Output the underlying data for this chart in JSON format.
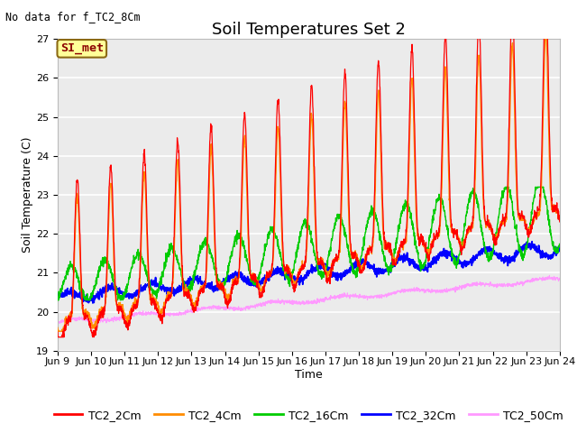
{
  "title": "Soil Temperatures Set 2",
  "subtitle": "No data for f_TC2_8Cm",
  "xlabel": "Time",
  "ylabel": "Soil Temperature (C)",
  "ylim": [
    19.0,
    27.0
  ],
  "yticks": [
    19.0,
    20.0,
    21.0,
    22.0,
    23.0,
    24.0,
    25.0,
    26.0,
    27.0
  ],
  "xtick_labels": [
    "Jun 9",
    "Jun 10",
    "Jun 11",
    "Jun 12",
    "Jun 13",
    "Jun 14",
    "Jun 15",
    "Jun 16",
    "Jun 17",
    "Jun 18",
    "Jun 19",
    "Jun 20",
    "Jun 21",
    "Jun 22",
    "Jun 23",
    "Jun 24"
  ],
  "series_colors": {
    "TC2_2Cm": "#FF0000",
    "TC2_4Cm": "#FF8C00",
    "TC2_16Cm": "#00CC00",
    "TC2_32Cm": "#0000FF",
    "TC2_50Cm": "#FF99FF"
  },
  "annotation_box": "SI_met",
  "annotation_box_facecolor": "#FFFF99",
  "annotation_box_edgecolor": "#8B6914",
  "background_color": "#EBEBEB",
  "grid_color": "#FFFFFF",
  "title_fontsize": 13,
  "label_fontsize": 9,
  "tick_fontsize": 8,
  "legend_fontsize": 9
}
